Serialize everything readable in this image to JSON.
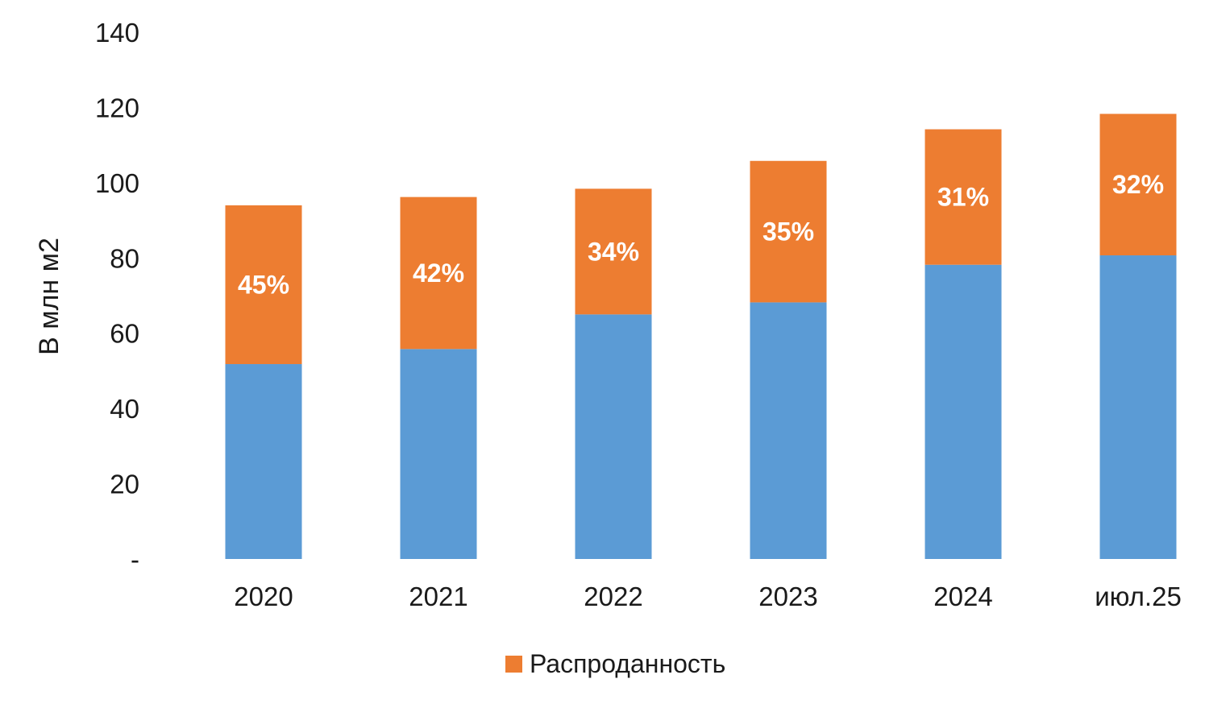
{
  "chart_data": {
    "type": "bar",
    "stacked": true,
    "categories": [
      "2020",
      "2021",
      "2022",
      "2023",
      "2024",
      "июл.25"
    ],
    "series": [
      {
        "values": [
          51.8,
          55.8,
          65.0,
          68.2,
          78.2,
          80.7
        ],
        "color": "#5b9bd5"
      },
      {
        "name": "Распроданность",
        "values": [
          42.2,
          40.4,
          33.4,
          37.6,
          36.0,
          37.6
        ],
        "color": "#ed7d31",
        "data_labels": [
          "45%",
          "42%",
          "34%",
          "35%",
          "31%",
          "32%"
        ]
      }
    ],
    "ylabel": "В млн м2",
    "ylim": [
      0,
      140
    ],
    "yticks": [
      0,
      20,
      40,
      60,
      80,
      100,
      120,
      140
    ],
    "ytick_labels": [
      "-",
      "20",
      "40",
      "60",
      "80",
      "100",
      "120",
      "140"
    ],
    "grid": false,
    "legend": {
      "position": "bottom",
      "entries": [
        "Распроданность"
      ]
    }
  }
}
